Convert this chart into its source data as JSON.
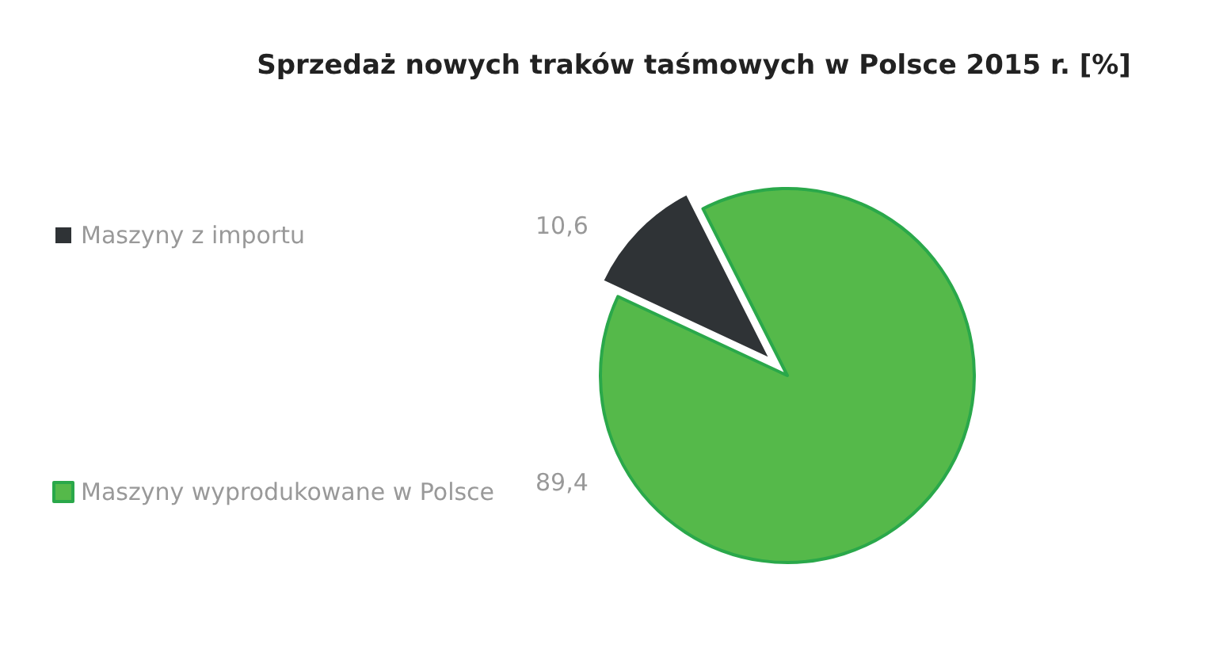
{
  "chart_data": {
    "type": "pie",
    "title": "Sprzedaż nowych traków taśmowych w Polsce 2015 r. [%]",
    "categories": [
      "Maszyny z importu",
      "Maszyny wyprodukowane w Polsce"
    ],
    "values": [
      10.6,
      89.4
    ],
    "value_labels": [
      "10,6",
      "89,4"
    ],
    "colors": [
      "#2f3336",
      "#55b94a"
    ],
    "legend": "left"
  }
}
